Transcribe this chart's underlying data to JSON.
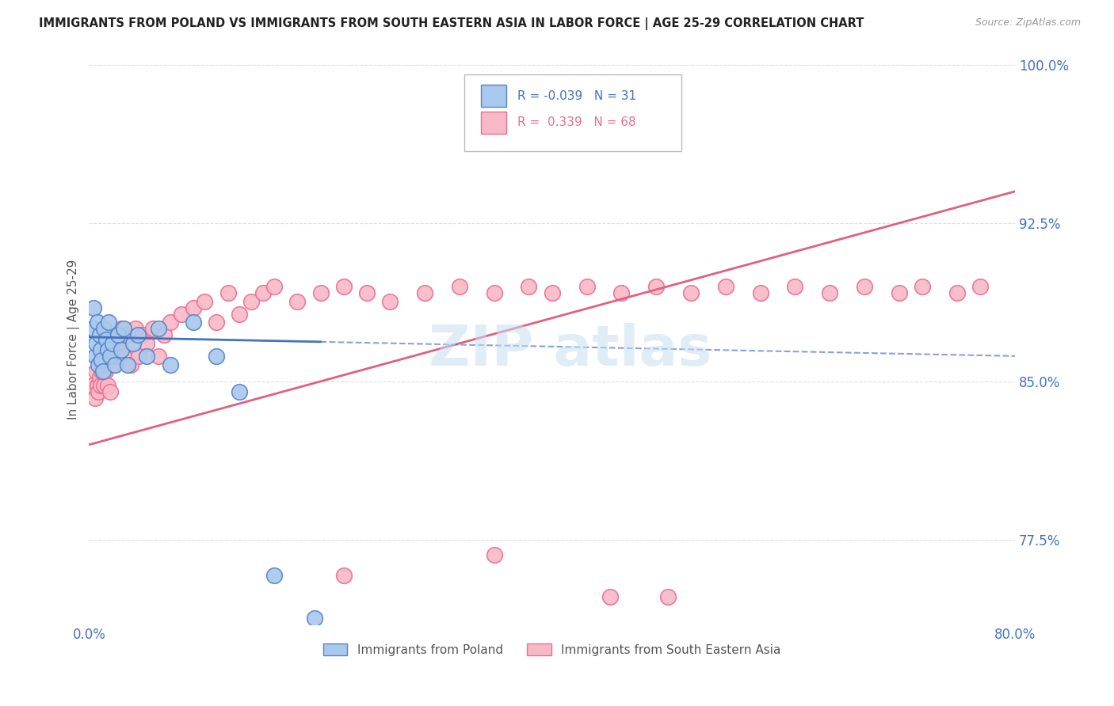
{
  "title": "IMMIGRANTS FROM POLAND VS IMMIGRANTS FROM SOUTH EASTERN ASIA IN LABOR FORCE | AGE 25-29 CORRELATION CHART",
  "source": "Source: ZipAtlas.com",
  "ylabel": "In Labor Force | Age 25-29",
  "xlim": [
    0.0,
    0.8
  ],
  "ylim": [
    0.735,
    1.005
  ],
  "xtick_vals": [
    0.0,
    0.2,
    0.4,
    0.6,
    0.8
  ],
  "xtick_labels": [
    "0.0%",
    "",
    "",
    "",
    "80.0%"
  ],
  "yticks": [
    0.775,
    0.85,
    0.925,
    1.0
  ],
  "ytick_labels": [
    "77.5%",
    "85.0%",
    "92.5%",
    "100.0%"
  ],
  "legend_R_poland": "-0.039",
  "legend_N_poland": "31",
  "legend_R_sea": "0.339",
  "legend_N_sea": "68",
  "poland_fill": "#A8C8EE",
  "sea_fill": "#F9B8C8",
  "poland_edge": "#5585C5",
  "sea_edge": "#E87090",
  "poland_line_color": "#4472C4",
  "sea_line_color": "#E06080",
  "background_color": "#FFFFFF",
  "grid_color": "#DDDDDD",
  "title_color": "#222222",
  "axis_label_color": "#555555",
  "tick_label_color": "#4472C4",
  "poland_scatter_x": [
    0.003,
    0.004,
    0.005,
    0.006,
    0.007,
    0.008,
    0.009,
    0.01,
    0.011,
    0.012,
    0.013,
    0.015,
    0.016,
    0.017,
    0.018,
    0.02,
    0.022,
    0.025,
    0.028,
    0.03,
    0.033,
    0.038,
    0.042,
    0.05,
    0.06,
    0.07,
    0.09,
    0.11,
    0.13,
    0.16,
    0.195
  ],
  "poland_scatter_y": [
    0.875,
    0.885,
    0.862,
    0.868,
    0.878,
    0.858,
    0.872,
    0.865,
    0.86,
    0.855,
    0.875,
    0.87,
    0.865,
    0.878,
    0.862,
    0.868,
    0.858,
    0.872,
    0.865,
    0.875,
    0.858,
    0.868,
    0.872,
    0.862,
    0.875,
    0.858,
    0.878,
    0.862,
    0.845,
    0.758,
    0.738
  ],
  "sea_scatter_x": [
    0.003,
    0.005,
    0.006,
    0.007,
    0.008,
    0.009,
    0.01,
    0.011,
    0.012,
    0.013,
    0.014,
    0.015,
    0.016,
    0.017,
    0.018,
    0.019,
    0.02,
    0.022,
    0.024,
    0.026,
    0.028,
    0.03,
    0.033,
    0.036,
    0.04,
    0.043,
    0.046,
    0.05,
    0.055,
    0.06,
    0.065,
    0.07,
    0.08,
    0.09,
    0.1,
    0.11,
    0.12,
    0.13,
    0.14,
    0.15,
    0.16,
    0.18,
    0.2,
    0.22,
    0.24,
    0.26,
    0.29,
    0.32,
    0.35,
    0.38,
    0.4,
    0.43,
    0.46,
    0.49,
    0.52,
    0.55,
    0.58,
    0.61,
    0.64,
    0.67,
    0.7,
    0.72,
    0.75,
    0.77,
    0.35,
    0.5,
    0.22,
    0.45
  ],
  "sea_scatter_y": [
    0.848,
    0.842,
    0.855,
    0.848,
    0.845,
    0.852,
    0.848,
    0.855,
    0.858,
    0.848,
    0.855,
    0.862,
    0.848,
    0.858,
    0.845,
    0.865,
    0.858,
    0.872,
    0.862,
    0.868,
    0.875,
    0.862,
    0.872,
    0.858,
    0.875,
    0.862,
    0.872,
    0.868,
    0.875,
    0.862,
    0.872,
    0.878,
    0.882,
    0.885,
    0.888,
    0.878,
    0.892,
    0.882,
    0.888,
    0.892,
    0.895,
    0.888,
    0.892,
    0.895,
    0.892,
    0.888,
    0.892,
    0.895,
    0.892,
    0.895,
    0.892,
    0.895,
    0.892,
    0.895,
    0.892,
    0.895,
    0.892,
    0.895,
    0.892,
    0.895,
    0.892,
    0.895,
    0.892,
    0.895,
    0.768,
    0.748,
    0.758,
    0.748
  ],
  "poland_line_x0": 0.0,
  "poland_line_x1": 0.8,
  "poland_line_y0": 0.871,
  "poland_line_y1": 0.862,
  "sea_line_x0": 0.0,
  "sea_line_x1": 0.8,
  "sea_line_y0": 0.82,
  "sea_line_y1": 0.94,
  "dashed_line_x0": 0.18,
  "dashed_line_x1": 0.8,
  "dashed_line_y0": 0.869,
  "dashed_line_y1": 0.856
}
